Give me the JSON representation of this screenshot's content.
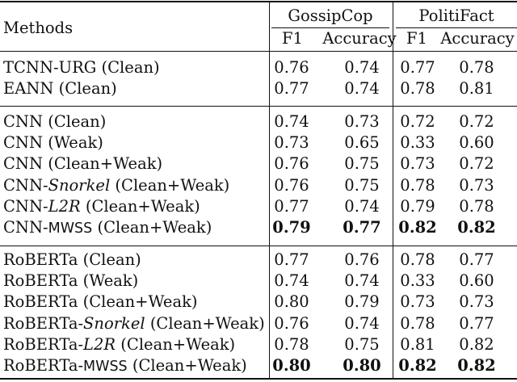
{
  "header": {
    "methods": "Methods",
    "groups": [
      "GossipCop",
      "PolitiFact"
    ],
    "metrics": [
      "F1",
      "Accuracy",
      "F1",
      "Accuracy"
    ]
  },
  "sections": [
    {
      "rows": [
        {
          "name": [
            {
              "t": "TCNN-URG (Clean)"
            }
          ],
          "values": [
            "0.76",
            "0.74",
            "0.77",
            "0.78"
          ],
          "bold": false
        },
        {
          "name": [
            {
              "t": "EANN (Clean)"
            }
          ],
          "values": [
            "0.77",
            "0.74",
            "0.78",
            "0.81"
          ],
          "bold": false
        }
      ]
    },
    {
      "rows": [
        {
          "name": [
            {
              "t": "CNN (Clean)"
            }
          ],
          "values": [
            "0.74",
            "0.73",
            "0.72",
            "0.72"
          ],
          "bold": false
        },
        {
          "name": [
            {
              "t": "CNN (Weak)"
            }
          ],
          "values": [
            "0.73",
            "0.65",
            "0.33",
            "0.60"
          ],
          "bold": false
        },
        {
          "name": [
            {
              "t": "CNN (Clean+Weak)"
            }
          ],
          "values": [
            "0.76",
            "0.75",
            "0.73",
            "0.72"
          ],
          "bold": false
        },
        {
          "name": [
            {
              "t": "CNN-"
            },
            {
              "t": "Snorkel",
              "s": "ital"
            },
            {
              "t": " (Clean+Weak)"
            }
          ],
          "values": [
            "0.76",
            "0.75",
            "0.78",
            "0.73"
          ],
          "bold": false
        },
        {
          "name": [
            {
              "t": "CNN-"
            },
            {
              "t": "L2R",
              "s": "ital"
            },
            {
              "t": " (Clean+Weak)"
            }
          ],
          "values": [
            "0.77",
            "0.74",
            "0.79",
            "0.78"
          ],
          "bold": false
        },
        {
          "name": [
            {
              "t": "CNN-"
            },
            {
              "t": "MWSS",
              "s": "sans"
            },
            {
              "t": " (Clean+Weak)"
            }
          ],
          "values": [
            "0.79",
            "0.77",
            "0.82",
            "0.82"
          ],
          "bold": true
        }
      ]
    },
    {
      "rows": [
        {
          "name": [
            {
              "t": "RoBERTa (Clean)"
            }
          ],
          "values": [
            "0.77",
            "0.76",
            "0.78",
            "0.77"
          ],
          "bold": false
        },
        {
          "name": [
            {
              "t": "RoBERTa (Weak)"
            }
          ],
          "values": [
            "0.74",
            "0.74",
            "0.33",
            "0.60"
          ],
          "bold": false
        },
        {
          "name": [
            {
              "t": "RoBERTa (Clean+Weak)"
            }
          ],
          "values": [
            "0.80",
            "0.79",
            "0.73",
            "0.73"
          ],
          "bold": false
        },
        {
          "name": [
            {
              "t": "RoBERTa-"
            },
            {
              "t": "Snorkel",
              "s": "ital"
            },
            {
              "t": " (Clean+Weak)"
            }
          ],
          "values": [
            "0.76",
            "0.74",
            "0.78",
            "0.77"
          ],
          "bold": false
        },
        {
          "name": [
            {
              "t": "RoBERTa-"
            },
            {
              "t": "L2R",
              "s": "ital"
            },
            {
              "t": " (Clean+Weak)"
            }
          ],
          "values": [
            "0.78",
            "0.75",
            "0.81",
            "0.82"
          ],
          "bold": false
        },
        {
          "name": [
            {
              "t": "RoBERTa-"
            },
            {
              "t": "MWSS",
              "s": "sans"
            },
            {
              "t": " (Clean+Weak)"
            }
          ],
          "values": [
            "0.80",
            "0.80",
            "0.82",
            "0.82"
          ],
          "bold": true
        }
      ]
    }
  ]
}
